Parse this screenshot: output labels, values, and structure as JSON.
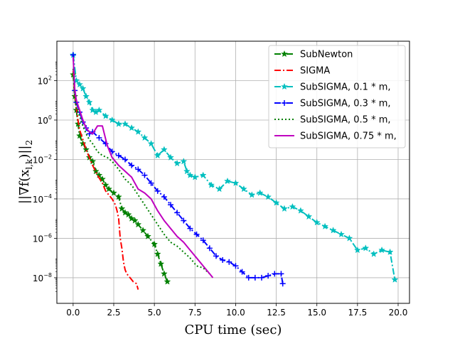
{
  "chart_data": {
    "type": "line",
    "xlabel": "CPU time (sec)",
    "ylabel": "||∇f(x",
    "ylabel_sub": "l,k",
    "ylabel_tail": ")||",
    "ylabel_sub2": "2",
    "xlim": [
      -1.0,
      20.7
    ],
    "ylim_log10": [
      -9.3,
      4.0
    ],
    "x_ticks": [
      0.0,
      2.5,
      5.0,
      7.5,
      10.0,
      12.5,
      15.0,
      17.5,
      20.0
    ],
    "x_tick_labels": [
      "0.0",
      "2.5",
      "5.0",
      "7.5",
      "10.0",
      "12.5",
      "15.0",
      "17.5",
      "20.0"
    ],
    "y_ticks_log10": [
      2,
      0,
      -2,
      -4,
      -6,
      -8
    ],
    "y_tick_base": "10",
    "y_tick_exps": [
      "2",
      "0",
      "−2",
      "−4",
      "−6",
      "−8"
    ],
    "grid": true,
    "legend_position": "upper right",
    "series": [
      {
        "name": "SubNewton",
        "color": "#008000",
        "style": "dashdot",
        "marker": "star",
        "x": [
          0.0,
          0.1,
          0.2,
          0.3,
          0.4,
          0.6,
          0.8,
          1.0,
          1.2,
          1.4,
          1.6,
          1.8,
          2.0,
          2.2,
          2.5,
          2.8,
          3.0,
          3.2,
          3.4,
          3.6,
          3.8,
          4.0,
          4.3,
          4.6,
          5.0,
          5.2,
          5.4,
          5.6,
          5.8
        ],
        "log10_y": [
          2.3,
          1.2,
          0.5,
          -0.2,
          -0.8,
          -1.2,
          -1.5,
          -1.9,
          -2.1,
          -2.6,
          -2.8,
          -3.0,
          -3.3,
          -3.5,
          -3.7,
          -3.9,
          -4.5,
          -4.7,
          -4.8,
          -5.0,
          -5.1,
          -5.3,
          -5.6,
          -5.9,
          -6.3,
          -6.8,
          -7.3,
          -7.8,
          -8.2
        ]
      },
      {
        "name": "SIGMA",
        "color": "#ff0000",
        "style": "dashdot",
        "marker": "none",
        "x": [
          0.0,
          0.1,
          0.2,
          0.3,
          0.4,
          0.6,
          0.8,
          1.0,
          1.2,
          1.5,
          1.8,
          2.0,
          2.2,
          2.4,
          2.6,
          2.7,
          2.8,
          2.9,
          3.0,
          3.1,
          3.2,
          3.3,
          3.5,
          3.7,
          3.9,
          4.0
        ],
        "log10_y": [
          2.5,
          1.3,
          0.6,
          0.0,
          -0.5,
          -1.0,
          -1.5,
          -1.9,
          -2.3,
          -2.8,
          -3.2,
          -3.6,
          -3.8,
          -4.0,
          -4.3,
          -4.6,
          -5.0,
          -6.0,
          -6.5,
          -7.2,
          -7.6,
          -7.8,
          -8.0,
          -8.2,
          -8.3,
          -8.6
        ]
      },
      {
        "name": "SubSIGMA, 0.1 * m,",
        "color": "#00bfbf",
        "style": "dashdot",
        "marker": "star",
        "x": [
          0.0,
          0.2,
          0.4,
          0.6,
          0.8,
          1.0,
          1.2,
          1.4,
          1.6,
          2.0,
          2.4,
          2.8,
          3.2,
          3.6,
          4.0,
          4.4,
          4.8,
          5.2,
          5.6,
          6.0,
          6.4,
          6.8,
          7.0,
          7.2,
          7.5,
          8.0,
          8.5,
          9.0,
          9.5,
          10.0,
          10.5,
          11.0,
          11.5,
          12.0,
          12.5,
          13.0,
          13.5,
          14.0,
          14.5,
          15.0,
          15.5,
          16.0,
          16.5,
          17.0,
          17.5,
          18.0,
          18.5,
          19.0,
          19.5,
          19.8
        ],
        "log10_y": [
          3.3,
          2.0,
          1.8,
          1.6,
          1.2,
          0.9,
          0.5,
          0.4,
          0.5,
          0.2,
          0.0,
          -0.2,
          -0.2,
          -0.4,
          -0.6,
          -0.9,
          -1.2,
          -1.8,
          -1.5,
          -1.9,
          -2.2,
          -2.1,
          -2.6,
          -2.8,
          -2.9,
          -2.8,
          -3.3,
          -3.5,
          -3.1,
          -3.2,
          -3.5,
          -3.8,
          -3.7,
          -3.9,
          -4.2,
          -4.5,
          -4.4,
          -4.6,
          -4.9,
          -5.2,
          -5.4,
          -5.6,
          -5.8,
          -6.0,
          -6.6,
          -6.5,
          -6.8,
          -6.6,
          -6.7,
          -8.1
        ]
      },
      {
        "name": "SubSIGMA, 0.3 * m,",
        "color": "#0000ff",
        "style": "dashdot",
        "marker": "plus",
        "x": [
          0.0,
          0.1,
          0.2,
          0.4,
          0.6,
          0.8,
          1.0,
          1.2,
          1.6,
          2.0,
          2.4,
          2.8,
          3.2,
          3.6,
          4.0,
          4.4,
          4.8,
          5.2,
          5.6,
          6.0,
          6.4,
          6.8,
          7.2,
          7.6,
          8.0,
          8.4,
          8.8,
          9.2,
          9.6,
          10.0,
          10.4,
          10.8,
          11.2,
          11.6,
          12.0,
          12.4,
          12.8,
          12.9
        ],
        "log10_y": [
          3.3,
          1.5,
          0.9,
          0.4,
          -0.1,
          -0.4,
          -0.7,
          -0.6,
          -0.9,
          -1.2,
          -1.6,
          -1.8,
          -2.0,
          -2.3,
          -2.5,
          -2.8,
          -3.2,
          -3.6,
          -3.9,
          -4.3,
          -4.7,
          -5.1,
          -5.5,
          -5.8,
          -6.1,
          -6.5,
          -6.9,
          -7.1,
          -7.2,
          -7.4,
          -7.7,
          -8.0,
          -8.0,
          -8.0,
          -7.9,
          -7.8,
          -7.8,
          -8.3
        ]
      },
      {
        "name": "SubSIGMA, 0.5 * m,",
        "color": "#008000",
        "style": "dotted",
        "marker": "none",
        "x": [
          0.0,
          0.1,
          0.2,
          0.4,
          0.6,
          0.8,
          1.0,
          1.2,
          1.5,
          1.8,
          2.1,
          2.4,
          2.8,
          3.2,
          3.6,
          4.0,
          4.4,
          4.8,
          5.2,
          5.6,
          6.0,
          6.4,
          6.8,
          7.2,
          7.6,
          8.0,
          8.4
        ],
        "log10_y": [
          2.6,
          1.2,
          0.6,
          0.2,
          -0.3,
          -0.7,
          -1.0,
          -1.2,
          -1.6,
          -1.8,
          -1.9,
          -2.1,
          -2.5,
          -3.0,
          -3.3,
          -3.8,
          -4.3,
          -4.8,
          -5.3,
          -5.8,
          -6.2,
          -6.4,
          -6.7,
          -7.0,
          -7.4,
          -7.5,
          -7.8
        ]
      },
      {
        "name": "SubSIGMA, 0.75 * m,",
        "color": "#bf00bf",
        "style": "solid",
        "marker": "none",
        "x": [
          0.0,
          0.1,
          0.2,
          0.4,
          0.6,
          0.8,
          1.0,
          1.2,
          1.5,
          1.8,
          2.1,
          2.4,
          2.8,
          3.2,
          3.6,
          4.0,
          4.4,
          4.8,
          5.2,
          5.6,
          6.0,
          6.4,
          6.8,
          7.2,
          7.6,
          8.0,
          8.4,
          8.6
        ],
        "log10_y": [
          3.2,
          1.6,
          1.0,
          0.5,
          0.0,
          -0.4,
          -0.6,
          -0.7,
          -0.3,
          -0.3,
          -1.3,
          -1.9,
          -2.3,
          -2.6,
          -2.9,
          -3.5,
          -3.7,
          -4.0,
          -4.6,
          -5.1,
          -5.5,
          -5.9,
          -6.2,
          -6.6,
          -7.0,
          -7.4,
          -7.8,
          -8.0
        ]
      }
    ]
  }
}
